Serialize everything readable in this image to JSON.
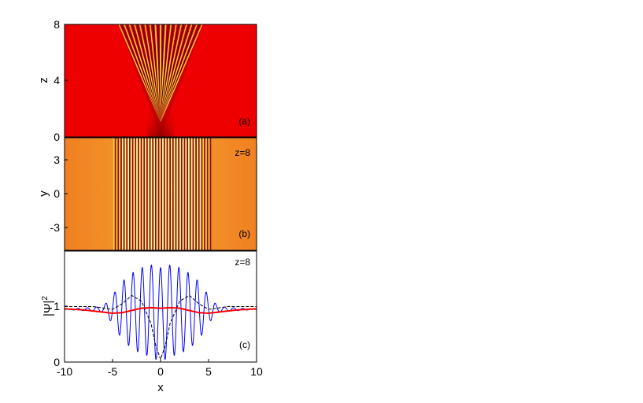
{
  "chart_data": [
    {
      "panel": "(a)",
      "type": "heatmap",
      "ylabel": "z",
      "xlim": [
        -10,
        10
      ],
      "ylim": [
        0,
        8
      ],
      "yticks": [
        "0",
        "4",
        "8"
      ],
      "colormap": [
        "#000000",
        "#ff0000",
        "#ffff00",
        "#ffffff"
      ]
    },
    {
      "panel": "(b)",
      "type": "heatmap",
      "annotation": "z=8",
      "ylabel": "y",
      "xlim": [
        -10,
        10
      ],
      "ylim": [
        -5,
        5
      ],
      "yticks": [
        "-3",
        "0",
        "3"
      ],
      "colormap": [
        "#000000",
        "#ff0000",
        "#ffff00",
        "#ffffff"
      ]
    },
    {
      "panel": "(c)",
      "type": "line",
      "annotation": "z=8",
      "xlabel": "x",
      "ylabel": "|Ψ|",
      "ylabel_sup": "2",
      "xlim": [
        -10,
        10
      ],
      "ylim": [
        0,
        2
      ],
      "xticks": [
        "-10",
        "-5",
        "0",
        "5",
        "10"
      ],
      "yticks": [
        "0",
        "1"
      ],
      "series": [
        {
          "color": "#0000ff",
          "x": [
            -10,
            -6,
            -5,
            -4,
            -3,
            -2,
            -1,
            0,
            1,
            2,
            3,
            4,
            5,
            6,
            10
          ],
          "y_envelope_low": [
            0.95,
            0.9,
            0.7,
            0.4,
            0.25,
            0.15,
            0.1,
            0.0,
            0.1,
            0.15,
            0.25,
            0.4,
            0.7,
            0.9,
            0.95
          ],
          "y_envelope_high": [
            0.95,
            1.0,
            1.2,
            1.45,
            1.6,
            1.7,
            1.75,
            1.7,
            1.75,
            1.7,
            1.6,
            1.45,
            1.2,
            1.0,
            0.95
          ]
        },
        {
          "color": "#000000",
          "style": "dashed",
          "x": [
            -10,
            -7,
            -5,
            -4,
            -3,
            -2,
            -1,
            -0.5,
            0,
            0.5,
            1,
            2,
            3,
            4,
            5,
            7,
            10
          ],
          "y": [
            1.0,
            1.0,
            0.95,
            1.05,
            1.2,
            1.1,
            0.7,
            0.3,
            0.05,
            0.3,
            0.7,
            1.1,
            1.2,
            1.05,
            0.95,
            1.0,
            1.0
          ]
        },
        {
          "color": "#ff0000",
          "x": [
            -10,
            -8,
            -6,
            -5,
            -4,
            -3,
            -2,
            -1,
            0,
            1,
            2,
            3,
            4,
            5,
            6,
            8,
            10
          ],
          "y": [
            0.96,
            0.94,
            0.9,
            0.88,
            0.89,
            0.93,
            0.97,
            0.98,
            0.97,
            0.98,
            0.97,
            0.93,
            0.89,
            0.88,
            0.9,
            0.94,
            0.96
          ]
        }
      ]
    }
  ]
}
